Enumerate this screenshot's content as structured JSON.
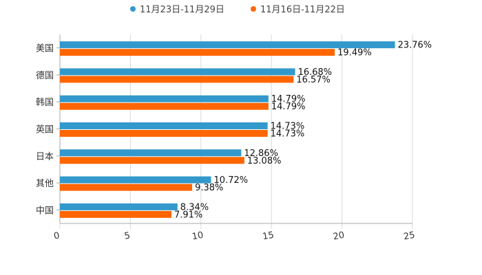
{
  "colors": {
    "series_a": "#3399cc",
    "series_b": "#ff6600",
    "grid": "#d9d9d9",
    "axis": "#aaaaaa"
  },
  "chart_data": {
    "type": "bar",
    "orientation": "horizontal",
    "title": "",
    "xlabel": "",
    "ylabel": "",
    "xlim": [
      0,
      25
    ],
    "x_ticks": [
      0,
      5,
      10,
      15,
      20,
      25
    ],
    "x_tick_labels": [
      "0",
      "5",
      "10",
      "15",
      "20",
      "25"
    ],
    "grid": true,
    "legend_position": "top-center",
    "categories": [
      "美国",
      "德国",
      "韩国",
      "英国",
      "日本",
      "其他",
      "中国"
    ],
    "series": [
      {
        "name": "11月23日-11月29日",
        "values": [
          23.76,
          16.68,
          14.79,
          14.73,
          12.86,
          10.72,
          8.34
        ],
        "labels": [
          "23.76%",
          "16.68%",
          "14.79%",
          "14.73%",
          "12.86%",
          "10.72%",
          "8.34%"
        ]
      },
      {
        "name": "11月16日-11月22日",
        "values": [
          19.49,
          16.57,
          14.79,
          14.73,
          13.08,
          9.38,
          7.91
        ],
        "labels": [
          "19.49%",
          "16.57%",
          "14.79%",
          "14.73%",
          "13.08%",
          "9.38%",
          "7.91%"
        ]
      }
    ]
  }
}
